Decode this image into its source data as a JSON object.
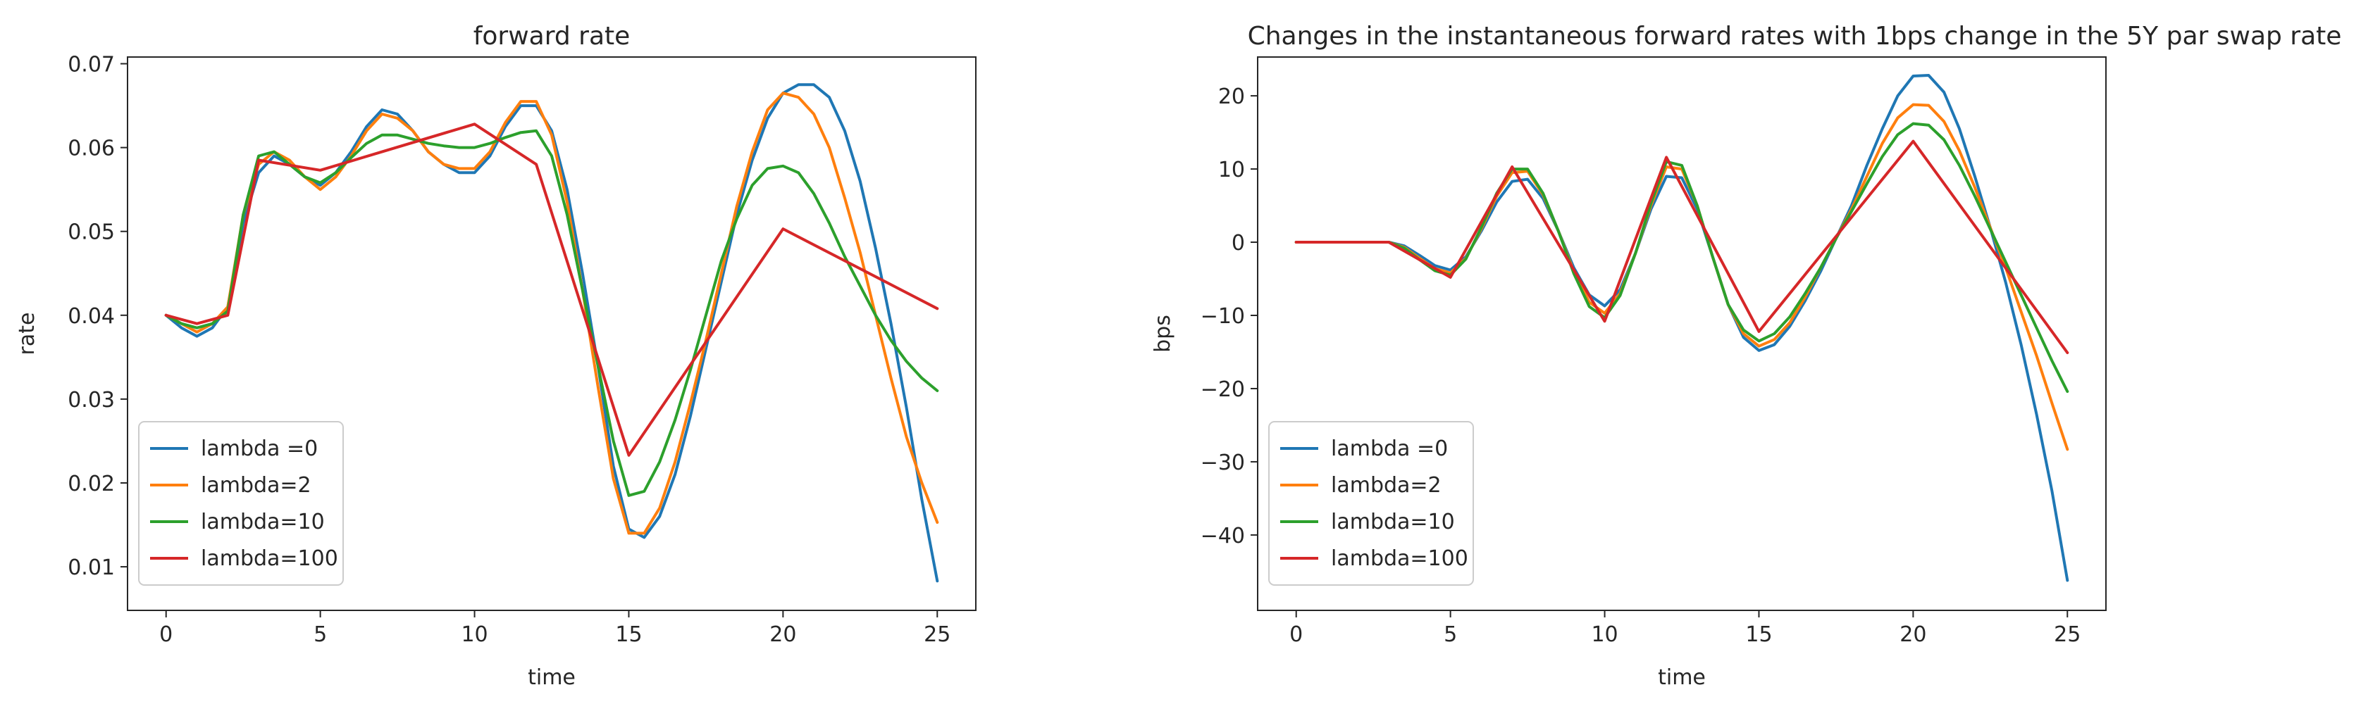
{
  "chart_data": [
    {
      "type": "line",
      "title": "forward rate",
      "xlabel": "time",
      "ylabel": "rate",
      "xlim": [
        -1.25,
        26.25
      ],
      "ylim": [
        0.0048,
        0.0708
      ],
      "xticks": [
        0,
        5,
        10,
        15,
        20,
        25
      ],
      "yticks": [
        0.01,
        0.02,
        0.03,
        0.04,
        0.05,
        0.06,
        0.07
      ],
      "x_tick_labels": [
        "0",
        "5",
        "10",
        "15",
        "20",
        "25"
      ],
      "y_tick_labels": [
        "0.01",
        "0.02",
        "0.03",
        "0.04",
        "0.05",
        "0.06",
        "0.07"
      ],
      "grid": false,
      "legend_position": "lower-left",
      "series": [
        {
          "name": "lambda =0",
          "color": "#1f77b4",
          "x": [
            0,
            0.5,
            1,
            1.5,
            2,
            2.5,
            3,
            3.5,
            4,
            4.5,
            5,
            5.5,
            6,
            6.5,
            7,
            7.5,
            8,
            8.5,
            9,
            9.5,
            10,
            10.5,
            11,
            11.5,
            12,
            12.5,
            13,
            13.5,
            14,
            14.5,
            15,
            15.5,
            16,
            16.5,
            17,
            17.5,
            18,
            18.5,
            19,
            19.5,
            20,
            20.5,
            21,
            21.5,
            22,
            22.5,
            23,
            23.5,
            24,
            24.5,
            25
          ],
          "y": [
            0.04,
            0.0385,
            0.0375,
            0.0385,
            0.041,
            0.051,
            0.057,
            0.059,
            0.058,
            0.0565,
            0.0555,
            0.057,
            0.0595,
            0.0625,
            0.0645,
            0.064,
            0.062,
            0.0595,
            0.058,
            0.057,
            0.057,
            0.059,
            0.0625,
            0.065,
            0.065,
            0.062,
            0.055,
            0.045,
            0.034,
            0.022,
            0.0145,
            0.0135,
            0.016,
            0.021,
            0.028,
            0.036,
            0.044,
            0.052,
            0.0585,
            0.0635,
            0.0665,
            0.0675,
            0.0675,
            0.066,
            0.062,
            0.056,
            0.048,
            0.039,
            0.029,
            0.018,
            0.0083
          ]
        },
        {
          "name": "lambda=2",
          "color": "#ff7f0e",
          "x": [
            0,
            0.5,
            1,
            1.5,
            2,
            2.5,
            3,
            3.5,
            4,
            4.5,
            5,
            5.5,
            6,
            6.5,
            7,
            7.5,
            8,
            8.5,
            9,
            9.5,
            10,
            10.5,
            11,
            11.5,
            12,
            12.5,
            13,
            13.5,
            14,
            14.5,
            15,
            15.5,
            16,
            16.5,
            17,
            17.5,
            18,
            18.5,
            19,
            19.5,
            20,
            20.5,
            21,
            21.5,
            22,
            22.5,
            23,
            23.5,
            24,
            24.5,
            25
          ],
          "y": [
            0.04,
            0.039,
            0.038,
            0.039,
            0.041,
            0.052,
            0.058,
            0.0595,
            0.0585,
            0.0565,
            0.055,
            0.0565,
            0.059,
            0.062,
            0.064,
            0.0635,
            0.062,
            0.0595,
            0.058,
            0.0575,
            0.0575,
            0.0595,
            0.063,
            0.0655,
            0.0655,
            0.0615,
            0.0535,
            0.043,
            0.0315,
            0.0205,
            0.014,
            0.014,
            0.017,
            0.0225,
            0.0295,
            0.037,
            0.045,
            0.053,
            0.0595,
            0.0645,
            0.0665,
            0.066,
            0.064,
            0.06,
            0.054,
            0.0475,
            0.04,
            0.0325,
            0.0255,
            0.02,
            0.0153
          ]
        },
        {
          "name": "lambda=10",
          "color": "#2ca02c",
          "x": [
            0,
            0.5,
            1,
            1.5,
            2,
            2.5,
            3,
            3.5,
            4,
            4.5,
            5,
            5.5,
            6,
            6.5,
            7,
            7.5,
            8,
            8.5,
            9,
            9.5,
            10,
            10.5,
            11,
            11.5,
            12,
            12.5,
            13,
            13.5,
            14,
            14.5,
            15,
            15.5,
            16,
            16.5,
            17,
            17.5,
            18,
            18.5,
            19,
            19.5,
            20,
            20.5,
            21,
            21.5,
            22,
            22.5,
            23,
            23.5,
            24,
            24.5,
            25
          ],
          "y": [
            0.04,
            0.039,
            0.0385,
            0.039,
            0.0405,
            0.052,
            0.059,
            0.0595,
            0.058,
            0.0565,
            0.0558,
            0.057,
            0.0588,
            0.0605,
            0.0615,
            0.0615,
            0.061,
            0.0605,
            0.0602,
            0.06,
            0.06,
            0.0605,
            0.0612,
            0.0618,
            0.062,
            0.059,
            0.052,
            0.043,
            0.034,
            0.025,
            0.0185,
            0.019,
            0.0225,
            0.0275,
            0.0335,
            0.04,
            0.0465,
            0.0515,
            0.0555,
            0.0575,
            0.0578,
            0.057,
            0.0545,
            0.051,
            0.047,
            0.0435,
            0.04,
            0.037,
            0.0345,
            0.0325,
            0.031
          ]
        },
        {
          "name": "lambda=100",
          "color": "#d62728",
          "x": [
            0,
            1,
            2,
            3,
            5,
            7,
            10,
            12,
            15,
            20,
            25
          ],
          "y": [
            0.04,
            0.039,
            0.04,
            0.0585,
            0.0573,
            0.0595,
            0.0628,
            0.058,
            0.0233,
            0.0503,
            0.0408
          ]
        }
      ]
    },
    {
      "type": "line",
      "title": "Changes in the instantaneous forward rates with 1bps change in the 5Y par swap rate",
      "xlabel": "time",
      "ylabel": "bps",
      "xlim": [
        -1.25,
        26.25
      ],
      "ylim": [
        -50.3,
        25.3
      ],
      "xticks": [
        0,
        5,
        10,
        15,
        20,
        25
      ],
      "yticks": [
        -40,
        -30,
        -20,
        -10,
        0,
        10,
        20
      ],
      "x_tick_labels": [
        "0",
        "5",
        "10",
        "15",
        "20",
        "25"
      ],
      "y_tick_labels": [
        "−40",
        "−30",
        "−20",
        "−10",
        "0",
        "10",
        "20"
      ],
      "grid": false,
      "legend_position": "lower-left",
      "series": [
        {
          "name": "lambda =0",
          "color": "#1f77b4",
          "x": [
            0,
            1,
            2,
            3,
            3.5,
            4,
            4.5,
            5,
            5.5,
            6,
            6.5,
            7,
            7.5,
            8,
            8.5,
            9,
            9.5,
            10,
            10.5,
            11,
            11.5,
            12,
            12.5,
            13,
            13.5,
            14,
            14.5,
            15,
            15.5,
            16,
            16.5,
            17,
            17.5,
            18,
            18.5,
            19,
            19.5,
            20,
            20.5,
            21,
            21.5,
            22,
            22.5,
            23,
            23.5,
            24,
            24.5,
            25
          ],
          "y": [
            0,
            0,
            0,
            0,
            -0.5,
            -1.8,
            -3.2,
            -3.8,
            -2,
            1.5,
            5.5,
            8.3,
            8.6,
            6,
            1.5,
            -3.5,
            -7.2,
            -8.7,
            -6.5,
            -1.5,
            4.5,
            9,
            8.8,
            4.5,
            -2,
            -8.5,
            -13,
            -14.8,
            -14,
            -11.5,
            -8,
            -4,
            0.5,
            5,
            10.5,
            15.5,
            20,
            22.7,
            22.8,
            20.5,
            15.5,
            9,
            2,
            -5.5,
            -14,
            -23.5,
            -34,
            -46.2
          ]
        },
        {
          "name": "lambda=2",
          "color": "#ff7f0e",
          "x": [
            0,
            1,
            2,
            3,
            3.5,
            4,
            4.5,
            5,
            5.5,
            6,
            6.5,
            7,
            7.5,
            8,
            8.5,
            9,
            9.5,
            10,
            10.5,
            11,
            11.5,
            12,
            12.5,
            13,
            13.5,
            14,
            14.5,
            15,
            15.5,
            16,
            16.5,
            17,
            17.5,
            18,
            18.5,
            19,
            19.5,
            20,
            20.5,
            21,
            21.5,
            22,
            22.5,
            23,
            23.5,
            24,
            24.5,
            25
          ],
          "y": [
            0,
            0,
            0,
            0,
            -0.7,
            -2.2,
            -3.6,
            -4.2,
            -2.2,
            1.8,
            6.3,
            9.5,
            9.7,
            6.5,
            1.5,
            -4,
            -8.2,
            -9.7,
            -7,
            -1.5,
            5,
            10.3,
            10,
            5,
            -2,
            -8.5,
            -12.5,
            -14.2,
            -13.3,
            -11,
            -7.5,
            -3.5,
            0.5,
            4.5,
            9,
            13.5,
            17,
            18.8,
            18.7,
            16.5,
            12.5,
            7.5,
            2,
            -3.5,
            -9.5,
            -15.5,
            -22,
            -28.3
          ]
        },
        {
          "name": "lambda=10",
          "color": "#2ca02c",
          "x": [
            0,
            1,
            2,
            3,
            3.5,
            4,
            4.5,
            5,
            5.5,
            6,
            6.5,
            7,
            7.5,
            8,
            8.5,
            9,
            9.5,
            10,
            10.5,
            11,
            11.5,
            12,
            12.5,
            13,
            13.5,
            14,
            14.5,
            15,
            15.5,
            16,
            16.5,
            17,
            17.5,
            18,
            18.5,
            19,
            19.5,
            20,
            20.5,
            21,
            21.5,
            22,
            22.5,
            23,
            23.5,
            24,
            24.5,
            25
          ],
          "y": [
            0,
            0,
            0,
            0,
            -0.8,
            -2.4,
            -3.9,
            -4.5,
            -2.3,
            2,
            6.7,
            10,
            10,
            6.7,
            1.5,
            -4.3,
            -8.8,
            -10.3,
            -7.3,
            -1.5,
            5.3,
            11,
            10.5,
            5,
            -2,
            -8.5,
            -12,
            -13.5,
            -12.5,
            -10.2,
            -7,
            -3.5,
            0.5,
            4.2,
            8,
            11.7,
            14.7,
            16.2,
            16,
            14,
            10.5,
            6.3,
            1.8,
            -2.7,
            -7.2,
            -11.7,
            -16.2,
            -20.4
          ]
        },
        {
          "name": "lambda=100",
          "color": "#d62728",
          "x": [
            0,
            3,
            5,
            7,
            10,
            12,
            15,
            20,
            25
          ],
          "y": [
            0,
            0,
            -4.8,
            10.3,
            -10.8,
            11.6,
            -12.2,
            13.8,
            -15.1
          ]
        }
      ]
    }
  ]
}
